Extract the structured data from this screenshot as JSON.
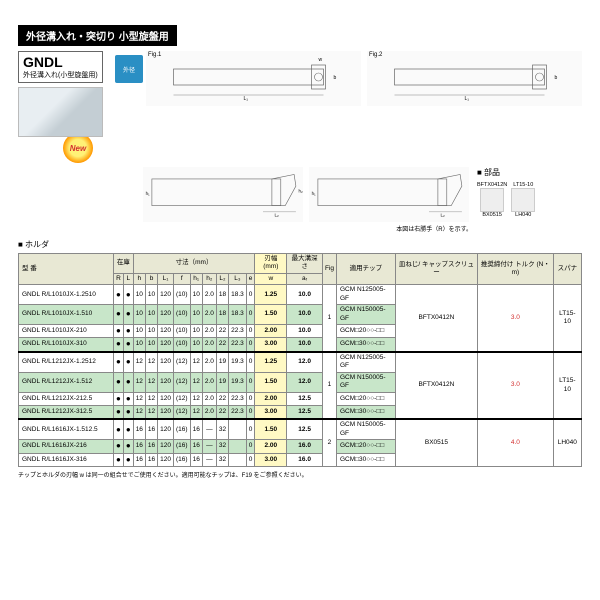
{
  "header": "外径溝入れ・突切り 小型旋盤用",
  "gndl": {
    "title": "GNDL",
    "sub": "外径溝入れ(小型旋盤用)",
    "icon": "外径"
  },
  "newBadge": "New",
  "figLabels": {
    "f1": "Fig.1",
    "f2": "Fig.2"
  },
  "note": "本図は右勝手（R）を示す。",
  "partsTitle": "■ 部品",
  "parts": {
    "p1": "BFTX0412N",
    "p2": "BX0515",
    "p3": "LT15-10",
    "p4": "LH040"
  },
  "holderTitle": "■ ホルダ",
  "headers": {
    "model": "型 番",
    "stock": "在庫",
    "dims": "寸法（mm）",
    "blade": "刃幅(mm)",
    "depth": "最大溝深さ",
    "fig": "Fig",
    "chip": "適用チップ",
    "screw": "皿ねじ/\nキャップスクリュー",
    "torque": "推奨締付け\nトルク\n(N・m)",
    "spanner": "スパナ",
    "R": "R",
    "L": "L",
    "h": "h",
    "b": "b",
    "L1": "L₁",
    "f": "f",
    "h1": "h₁",
    "h2": "h₂",
    "L2": "L₂",
    "L3": "L₃",
    "e": "e",
    "w": "w",
    "ar": "aᵣ"
  },
  "rows": [
    {
      "m": "GNDL R/L1010JX-1.2510",
      "h": "10",
      "b": "10",
      "L1": "120",
      "f": "(10)",
      "h1": "10",
      "h2": "2.0",
      "L2": "18",
      "L3": "18.3",
      "e": "0",
      "w": "1.25",
      "ar": "10.0",
      "chip": "GCM N125005-GF"
    },
    {
      "m": "GNDL R/L1010JX-1.510",
      "h": "10",
      "b": "10",
      "L1": "120",
      "f": "(10)",
      "h1": "10",
      "h2": "2.0",
      "L2": "18",
      "L3": "18.3",
      "e": "0",
      "w": "1.50",
      "ar": "10.0",
      "chip": "GCM N150005-GF",
      "green": true
    },
    {
      "m": "GNDL R/L1010JX-210",
      "h": "10",
      "b": "10",
      "L1": "120",
      "f": "(10)",
      "h1": "10",
      "h2": "2.0",
      "L2": "22",
      "L3": "22.3",
      "e": "0",
      "w": "2.00",
      "ar": "10.0",
      "chip": "GCM□20○○-□□"
    },
    {
      "m": "GNDL R/L1010JX-310",
      "h": "10",
      "b": "10",
      "L1": "120",
      "f": "(10)",
      "h1": "10",
      "h2": "2.0",
      "L2": "22",
      "L3": "22.3",
      "e": "0",
      "w": "3.00",
      "ar": "10.0",
      "chip": "GCM□30○○-□□",
      "green": true,
      "thick": true
    },
    {
      "m": "GNDL R/L1212JX-1.2512",
      "h": "12",
      "b": "12",
      "L1": "120",
      "f": "(12)",
      "h1": "12",
      "h2": "2.0",
      "L2": "19",
      "L3": "19.3",
      "e": "0",
      "w": "1.25",
      "ar": "12.0",
      "chip": "GCM N125005-GF"
    },
    {
      "m": "GNDL R/L1212JX-1.512",
      "h": "12",
      "b": "12",
      "L1": "120",
      "f": "(12)",
      "h1": "12",
      "h2": "2.0",
      "L2": "19",
      "L3": "19.3",
      "e": "0",
      "w": "1.50",
      "ar": "12.0",
      "chip": "GCM N150005-GF",
      "green": true
    },
    {
      "m": "GNDL R/L1212JX-212.5",
      "h": "12",
      "b": "12",
      "L1": "120",
      "f": "(12)",
      "h1": "12",
      "h2": "2.0",
      "L2": "22",
      "L3": "22.3",
      "e": "0",
      "w": "2.00",
      "ar": "12.5",
      "chip": "GCM□20○○-□□"
    },
    {
      "m": "GNDL R/L1212JX-312.5",
      "h": "12",
      "b": "12",
      "L1": "120",
      "f": "(12)",
      "h1": "12",
      "h2": "2.0",
      "L2": "22",
      "L3": "22.3",
      "e": "0",
      "w": "3.00",
      "ar": "12.5",
      "chip": "GCM□30○○-□□",
      "green": true,
      "thick": true
    },
    {
      "m": "GNDL R/L1616JX-1.512.5",
      "h": "16",
      "b": "16",
      "L1": "120",
      "f": "(16)",
      "h1": "16",
      "h2": "—",
      "L2": "32",
      "L3": "",
      "e": "0",
      "w": "1.50",
      "ar": "12.5",
      "chip": "GCM N150005-GF"
    },
    {
      "m": "GNDL R/L1616JX-216",
      "h": "16",
      "b": "16",
      "L1": "120",
      "f": "(16)",
      "h1": "16",
      "h2": "—",
      "L2": "32",
      "L3": "",
      "e": "0",
      "w": "2.00",
      "ar": "16.0",
      "chip": "GCM□20○○-□□",
      "green": true
    },
    {
      "m": "GNDL R/L1616JX-316",
      "h": "16",
      "b": "16",
      "L1": "120",
      "f": "(16)",
      "h1": "16",
      "h2": "—",
      "L2": "32",
      "L3": "",
      "e": "0",
      "w": "3.00",
      "ar": "16.0",
      "chip": "GCM□30○○-□□"
    }
  ],
  "groups": [
    {
      "fig": "1",
      "screw": "BFTX0412N",
      "torque": "3.0",
      "spanner": "LT15-10",
      "span": 4
    },
    {
      "fig": "1",
      "screw": "BFTX0412N",
      "torque": "3.0",
      "spanner": "LT15-10",
      "span": 4
    },
    {
      "fig": "2",
      "screw": "BX0515",
      "torque": "4.0",
      "spanner": "LH040",
      "span": 3
    }
  ],
  "footnote": "チップとホルダの刃幅 w は同一の組合せでご使用ください。適用可能なチップは、F19 をご参照ください。"
}
